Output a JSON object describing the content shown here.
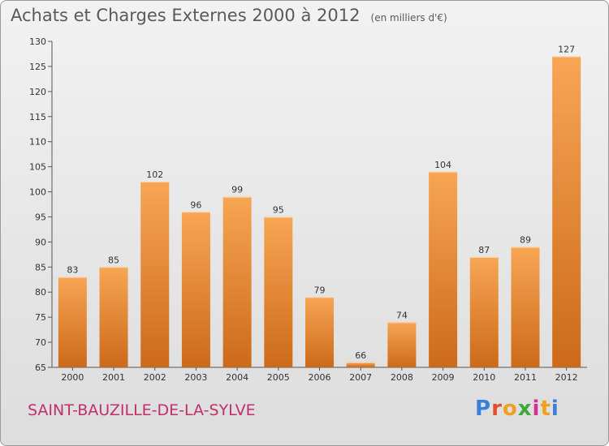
{
  "header": {
    "title": "Achats et Charges Externes 2000 à 2012",
    "unit": "(en milliers d'€)"
  },
  "footer": {
    "commune": "SAINT-BAUZILLE-DE-LA-SYLVE",
    "logo_text": "Proxiti"
  },
  "colors": {
    "bar_top": "#f7a654",
    "bar_bottom": "#cc6a1a",
    "commune": "#c0306a"
  },
  "chart_data": {
    "type": "bar",
    "title": "Achats et Charges Externes 2000 à 2012",
    "subtitle": "(en milliers d'€)",
    "xlabel": "",
    "ylabel": "",
    "categories": [
      "2000",
      "2001",
      "2002",
      "2003",
      "2004",
      "2005",
      "2006",
      "2007",
      "2008",
      "2009",
      "2010",
      "2011",
      "2012"
    ],
    "values": [
      83,
      85,
      102,
      96,
      99,
      95,
      79,
      66,
      74,
      104,
      87,
      89,
      127
    ],
    "ylim": [
      65,
      130
    ],
    "yticks": [
      65,
      70,
      75,
      80,
      85,
      90,
      95,
      100,
      105,
      110,
      115,
      120,
      125,
      130
    ],
    "grid": false,
    "legend": "none"
  }
}
